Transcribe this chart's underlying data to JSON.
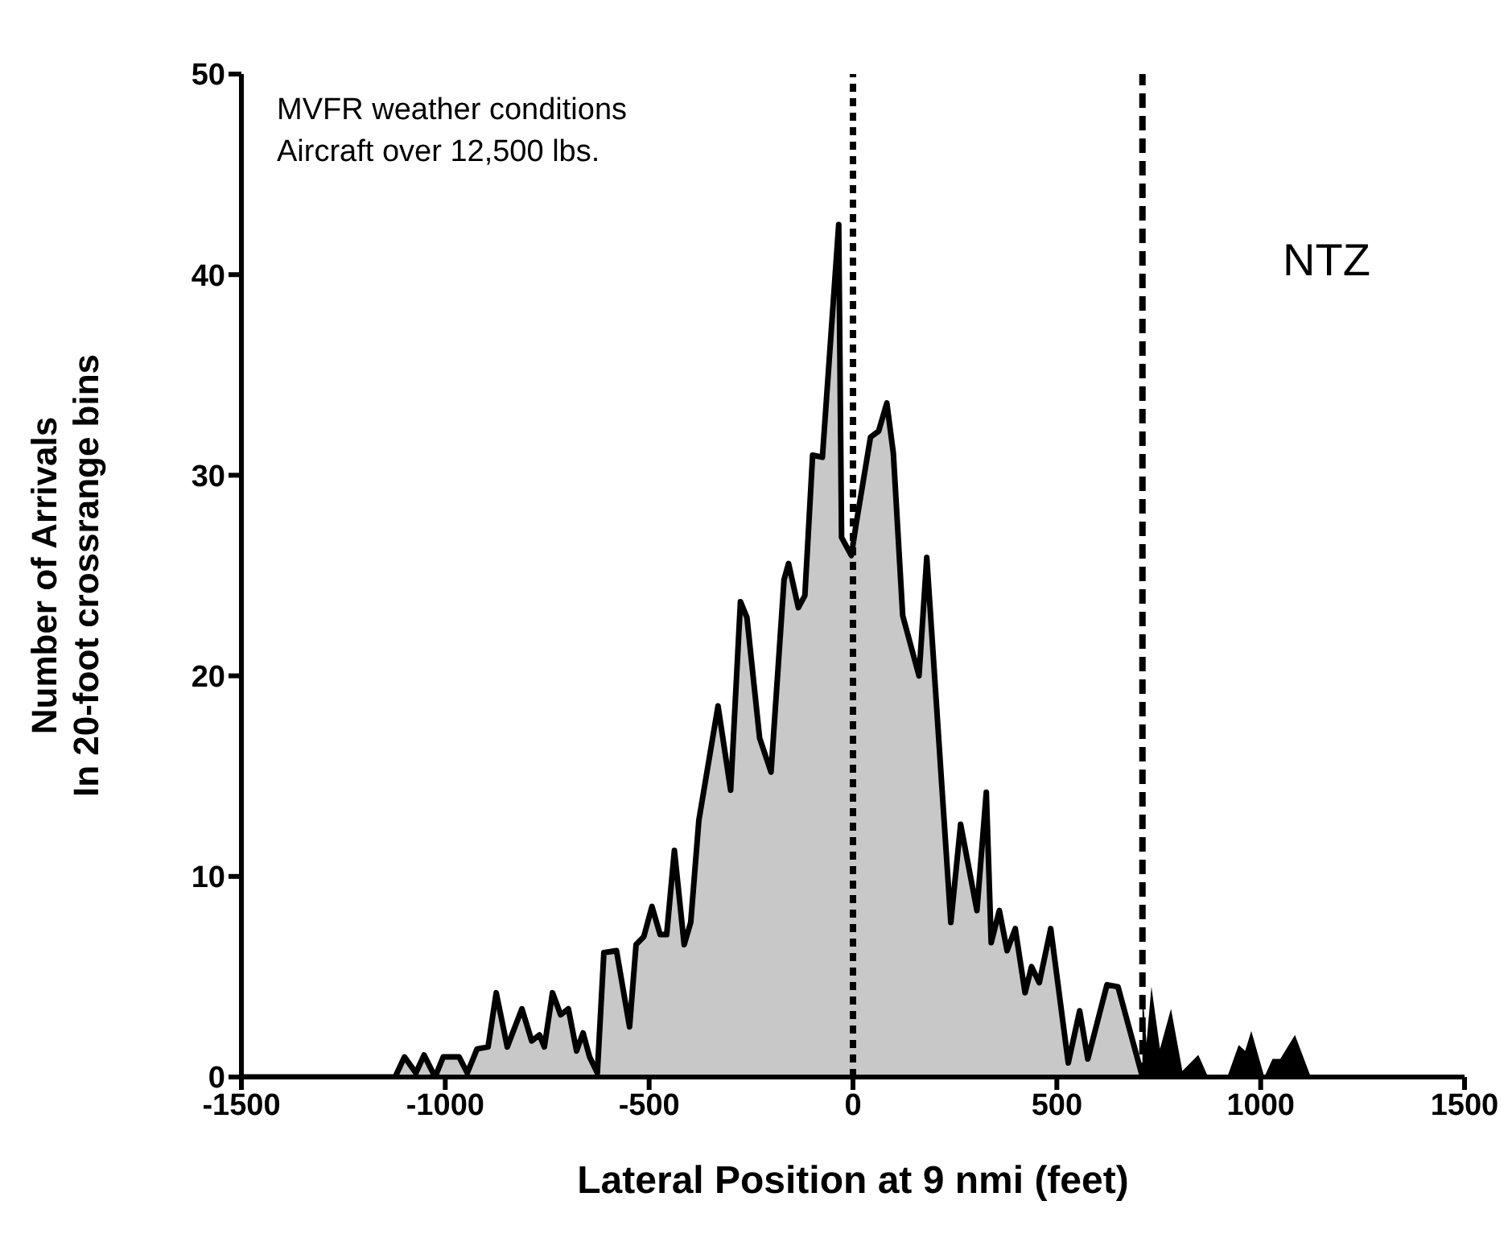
{
  "chart_data": {
    "type": "area",
    "xlabel": "Lateral Position at 9 nmi (feet)",
    "ylabel": "Number of Arrivals\nIn 20-foot crossrange bins",
    "xlim": [
      -1500,
      1500
    ],
    "xticks": [
      -1500,
      -1000,
      -500,
      0,
      500,
      1000,
      1500
    ],
    "ylim": [
      0,
      50
    ],
    "yticks": [
      0,
      10,
      20,
      30,
      40,
      50
    ],
    "legend": false,
    "marker": "none",
    "line_style": "solid",
    "series": [
      {
        "color": "#c8c8c8",
        "x": [
          -1500,
          -1123,
          -1100,
          -1072,
          -1052,
          -1025,
          -1005,
          -966,
          -946,
          -922,
          -895,
          -875,
          -848,
          -812,
          -788,
          -769,
          -757,
          -737,
          -717,
          -698,
          -678,
          -662,
          -646,
          -627,
          -611,
          -580,
          -548,
          -532,
          -513,
          -493,
          -473,
          -457,
          -438,
          -414,
          -398,
          -378,
          -331,
          -300,
          -276,
          -260,
          -229,
          -201,
          -169,
          -158,
          -134,
          -118,
          -99,
          -75,
          -35,
          -28,
          -4,
          8,
          43,
          63,
          83,
          99,
          122,
          162,
          181,
          240,
          264,
          304,
          327,
          339,
          359,
          378,
          398,
          422,
          438,
          457,
          485,
          528,
          556,
          576,
          623,
          650,
          710
        ],
        "values": [
          0,
          0,
          1,
          0.2,
          1.1,
          0,
          1,
          1,
          0.2,
          1.4,
          1.5,
          4.2,
          1.5,
          3.4,
          1.8,
          2.1,
          1.5,
          4.2,
          3.1,
          3.4,
          1.3,
          2.2,
          1,
          0.2,
          6.2,
          6.3,
          2.5,
          6.6,
          7,
          8.5,
          7.1,
          7.1,
          11.3,
          6.6,
          7.7,
          12.8,
          18.5,
          14.3,
          23.7,
          22.9,
          16.9,
          15.2,
          24.8,
          25.6,
          23.4,
          24,
          31,
          30.9,
          42.5,
          26.9,
          26,
          27.6,
          31.9,
          32.2,
          33.6,
          31.1,
          23,
          20,
          25.9,
          7.7,
          12.6,
          8.3,
          14.2,
          6.7,
          8.3,
          6.3,
          7.4,
          4.2,
          5.5,
          4.7,
          7.4,
          0.7,
          3.3,
          0.9,
          4.6,
          4.5,
          0
        ]
      },
      {
        "color": "#000000",
        "x": [
          710,
          720,
          732,
          753,
          780,
          808,
          847,
          871,
          918,
          946,
          962,
          977,
          1009,
          1029,
          1048,
          1084,
          1123,
          1500
        ],
        "values": [
          4.2,
          1.7,
          4.5,
          1.4,
          3.4,
          0.3,
          1.1,
          0,
          0,
          1.6,
          1.3,
          2.3,
          0,
          0.9,
          0.9,
          2.1,
          0,
          0
        ]
      }
    ],
    "ref_lines": [
      {
        "axis": "x",
        "value": 0,
        "line_style": "dotted",
        "color": "#000000"
      },
      {
        "axis": "x",
        "value": 710,
        "line_style": "dashed",
        "color": "#000000"
      }
    ],
    "annotations": [
      "MVFR weather conditions",
      "Aircraft over 12,500 lbs.",
      "NTZ"
    ]
  }
}
